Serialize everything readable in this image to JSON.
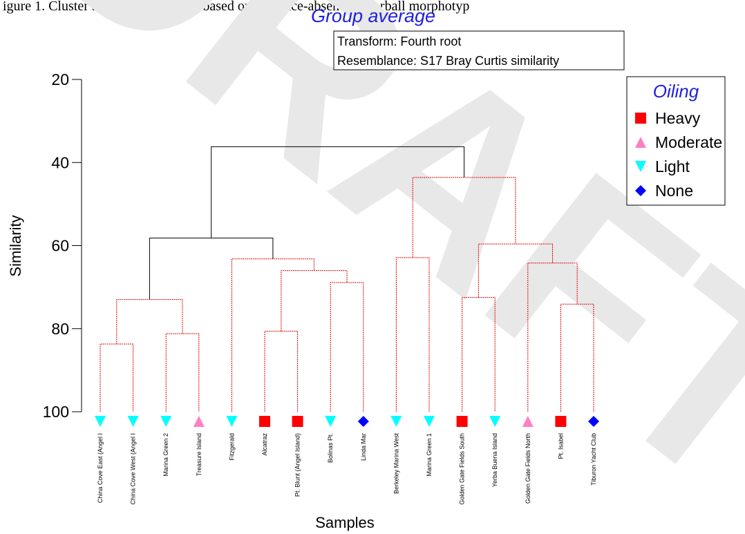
{
  "top_fragment": "igure 1. Cluster analysis of samples based on presence-absence of tarball morphotyp",
  "watermark": "DRAFT",
  "chart_data": {
    "type": "dendrogram",
    "title": "Group average",
    "info_lines": [
      "Transform: Fourth root",
      "Resemblance: S17 Bray Curtis similarity"
    ],
    "xlabel": "Samples",
    "ylabel": "Similarity",
    "ylim": [
      20,
      100
    ],
    "yticks": [
      20,
      40,
      60,
      80,
      100
    ],
    "legend": {
      "title": "Oiling",
      "placement": "right",
      "entries": [
        {
          "label": "Heavy",
          "shape": "square",
          "color": "#ff0000"
        },
        {
          "label": "Moderate",
          "shape": "triangle-up",
          "color": "#ff80c0"
        },
        {
          "label": "Light",
          "shape": "triangle-down",
          "color": "#00ffff"
        },
        {
          "label": "None",
          "shape": "diamond",
          "color": "#0000ff"
        }
      ]
    },
    "leaves": [
      {
        "label": "China Cove East (Angel I",
        "oiling": "Light"
      },
      {
        "label": "China Cove West (Angel I",
        "oiling": "Light"
      },
      {
        "label": "Marina Green 2",
        "oiling": "Light"
      },
      {
        "label": "Treasure Island",
        "oiling": "Moderate"
      },
      {
        "label": "Fitzgerald",
        "oiling": "Light"
      },
      {
        "label": "Alcatraz",
        "oiling": "Heavy"
      },
      {
        "label": "Pt. Blunt (Angel Island)",
        "oiling": "Heavy"
      },
      {
        "label": "Bolinas Pt.",
        "oiling": "Light"
      },
      {
        "label": "Linda Mar",
        "oiling": "None"
      },
      {
        "label": "Berkeley Marina West",
        "oiling": "Light"
      },
      {
        "label": "Marina Green 1",
        "oiling": "Light"
      },
      {
        "label": "Golden Gate Fields South",
        "oiling": "Heavy"
      },
      {
        "label": "Yerba Buena Island",
        "oiling": "Light"
      },
      {
        "label": "Golden Gate Fields North",
        "oiling": "Moderate"
      },
      {
        "label": "Pt. Isabel",
        "oiling": "Heavy"
      },
      {
        "label": "Tiburon Yacht Club",
        "oiling": "None"
      }
    ],
    "merges": [
      {
        "id": "m1",
        "left": 0,
        "right": 1,
        "similarity": 83.7,
        "significant": false
      },
      {
        "id": "m2",
        "left": 2,
        "right": 3,
        "similarity": 81.2,
        "significant": false
      },
      {
        "id": "m3",
        "left": "m1",
        "right": "m2",
        "similarity": 73.0,
        "significant": false
      },
      {
        "id": "m4",
        "left": 5,
        "right": 6,
        "similarity": 80.6,
        "significant": false
      },
      {
        "id": "m5",
        "left": 7,
        "right": 8,
        "similarity": 68.9,
        "significant": false
      },
      {
        "id": "m6",
        "left": "m4",
        "right": "m5",
        "similarity": 66.0,
        "significant": false
      },
      {
        "id": "m7",
        "left": 4,
        "right": "m6",
        "similarity": 63.2,
        "significant": false
      },
      {
        "id": "m8",
        "left": "m3",
        "right": "m7",
        "similarity": 58.2,
        "significant": true
      },
      {
        "id": "m9",
        "left": 9,
        "right": 10,
        "similarity": 62.9,
        "significant": false
      },
      {
        "id": "m10",
        "left": 11,
        "right": 12,
        "similarity": 72.5,
        "significant": false
      },
      {
        "id": "m11",
        "left": 14,
        "right": 15,
        "similarity": 74.1,
        "significant": false
      },
      {
        "id": "m12",
        "left": 13,
        "right": "m11",
        "similarity": 64.2,
        "significant": false
      },
      {
        "id": "m13",
        "left": "m10",
        "right": "m12",
        "similarity": 59.6,
        "significant": false
      },
      {
        "id": "m14",
        "left": "m9",
        "right": "m13",
        "similarity": 43.6,
        "significant": false
      },
      {
        "id": "m15",
        "left": "m8",
        "right": "m14",
        "similarity": 36.2,
        "significant": true
      }
    ]
  }
}
